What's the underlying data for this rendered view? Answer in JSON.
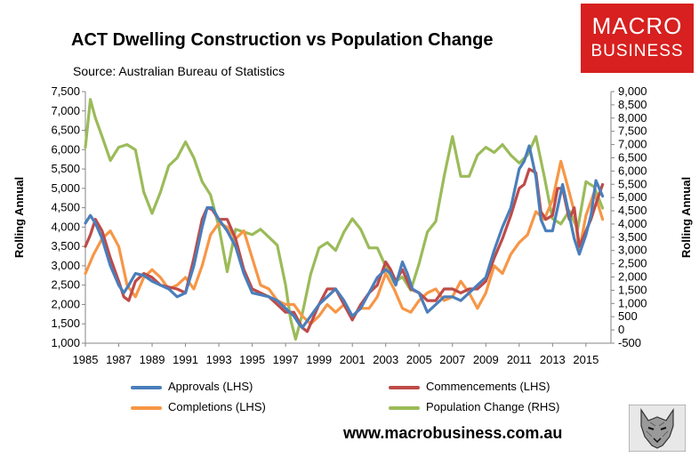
{
  "title": "ACT Dwelling Construction vs Population Change",
  "subtitle": "Source: Australian Bureau of Statistics",
  "logo": {
    "line1": "MACRO",
    "line2": "BUSINESS",
    "color": "#d7201f"
  },
  "website": "www.macrobusiness.com.au",
  "wolf_icon": "wolf-icon",
  "chart_data": {
    "type": "line",
    "title": "ACT Dwelling Construction vs Population Change",
    "ylabel_left": "Rolling Annual",
    "ylabel_right": "Rolling Annual",
    "ylim_left": [
      1000,
      7500
    ],
    "ylim_right": [
      -500,
      9000
    ],
    "xlim": [
      1985,
      2016.5
    ],
    "left_ticks": [
      "1,000",
      "1,500",
      "2,000",
      "2,500",
      "3,000",
      "3,500",
      "4,000",
      "4,500",
      "5,000",
      "5,500",
      "6,000",
      "6,500",
      "7,000",
      "7,500"
    ],
    "right_ticks": [
      "-500",
      "0",
      "500",
      "1,000",
      "1,500",
      "2,000",
      "2,500",
      "3,000",
      "3,500",
      "4,000",
      "4,500",
      "5,000",
      "5,500",
      "6,000",
      "6,500",
      "7,000",
      "7,500",
      "8,000",
      "8,500",
      "9,000"
    ],
    "x_ticks": [
      "1985",
      "1987",
      "1989",
      "1991",
      "1993",
      "1995",
      "1997",
      "1999",
      "2001",
      "2003",
      "2005",
      "2007",
      "2009",
      "2011",
      "2013",
      "2015"
    ],
    "series": [
      {
        "name": "Approvals (LHS)",
        "axis": "left",
        "color": "#4a7ebb",
        "points": [
          [
            1985,
            4100
          ],
          [
            1985.3,
            4300
          ],
          [
            1985.6,
            4100
          ],
          [
            1986,
            3700
          ],
          [
            1986.5,
            3000
          ],
          [
            1987,
            2500
          ],
          [
            1987.3,
            2300
          ],
          [
            1987.6,
            2500
          ],
          [
            1988,
            2800
          ],
          [
            1988.5,
            2750
          ],
          [
            1989,
            2600
          ],
          [
            1989.5,
            2500
          ],
          [
            1990,
            2400
          ],
          [
            1990.5,
            2200
          ],
          [
            1991,
            2300
          ],
          [
            1991.5,
            3000
          ],
          [
            1992,
            4000
          ],
          [
            1992.3,
            4500
          ],
          [
            1992.6,
            4500
          ],
          [
            1993,
            4200
          ],
          [
            1993.5,
            3900
          ],
          [
            1994,
            3500
          ],
          [
            1994.5,
            2800
          ],
          [
            1995,
            2300
          ],
          [
            1995.5,
            2250
          ],
          [
            1996,
            2200
          ],
          [
            1996.5,
            2100
          ],
          [
            1997,
            1900
          ],
          [
            1997.5,
            1700
          ],
          [
            1997.8,
            1500
          ],
          [
            1998,
            1400
          ],
          [
            1998.5,
            1700
          ],
          [
            1999,
            2000
          ],
          [
            1999.5,
            2200
          ],
          [
            2000,
            2400
          ],
          [
            2000.5,
            2100
          ],
          [
            2001,
            1700
          ],
          [
            2001.5,
            1900
          ],
          [
            2002,
            2300
          ],
          [
            2002.5,
            2700
          ],
          [
            2003,
            2900
          ],
          [
            2003.3,
            2800
          ],
          [
            2003.6,
            2500
          ],
          [
            2004,
            3100
          ],
          [
            2004.3,
            2800
          ],
          [
            2004.6,
            2400
          ],
          [
            2005,
            2300
          ],
          [
            2005.5,
            1800
          ],
          [
            2006,
            2000
          ],
          [
            2006.5,
            2200
          ],
          [
            2007,
            2200
          ],
          [
            2007.5,
            2100
          ],
          [
            2008,
            2300
          ],
          [
            2008.5,
            2500
          ],
          [
            2009,
            2700
          ],
          [
            2009.5,
            3400
          ],
          [
            2010,
            4000
          ],
          [
            2010.5,
            4500
          ],
          [
            2011,
            5500
          ],
          [
            2011.3,
            5700
          ],
          [
            2011.6,
            6100
          ],
          [
            2012,
            5300
          ],
          [
            2012.3,
            4200
          ],
          [
            2012.6,
            3900
          ],
          [
            2013,
            3900
          ],
          [
            2013.3,
            4500
          ],
          [
            2013.6,
            5100
          ],
          [
            2014,
            4300
          ],
          [
            2014.3,
            3700
          ],
          [
            2014.6,
            3300
          ],
          [
            2015,
            3800
          ],
          [
            2015.3,
            4300
          ],
          [
            2015.6,
            5200
          ],
          [
            2016,
            4800
          ]
        ]
      },
      {
        "name": "Commencements (LHS)",
        "axis": "left",
        "color": "#be4b48",
        "points": [
          [
            1985,
            3500
          ],
          [
            1985.3,
            3800
          ],
          [
            1985.6,
            4200
          ],
          [
            1986,
            3900
          ],
          [
            1986.5,
            3200
          ],
          [
            1987,
            2600
          ],
          [
            1987.3,
            2200
          ],
          [
            1987.6,
            2100
          ],
          [
            1988,
            2600
          ],
          [
            1988.5,
            2800
          ],
          [
            1989,
            2700
          ],
          [
            1989.5,
            2500
          ],
          [
            1990,
            2450
          ],
          [
            1990.5,
            2400
          ],
          [
            1991,
            2300
          ],
          [
            1991.5,
            3200
          ],
          [
            1992,
            4200
          ],
          [
            1992.3,
            4500
          ],
          [
            1992.6,
            4450
          ],
          [
            1993,
            4200
          ],
          [
            1993.5,
            4200
          ],
          [
            1994,
            3700
          ],
          [
            1994.5,
            2900
          ],
          [
            1995,
            2400
          ],
          [
            1995.5,
            2300
          ],
          [
            1996,
            2200
          ],
          [
            1996.5,
            2000
          ],
          [
            1997,
            1800
          ],
          [
            1997.5,
            1800
          ],
          [
            1998,
            1400
          ],
          [
            1998.3,
            1300
          ],
          [
            1998.6,
            1600
          ],
          [
            1999,
            2000
          ],
          [
            1999.5,
            2400
          ],
          [
            2000,
            2400
          ],
          [
            2000.5,
            2000
          ],
          [
            2001,
            1600
          ],
          [
            2001.5,
            2000
          ],
          [
            2002,
            2300
          ],
          [
            2002.5,
            2500
          ],
          [
            2003,
            3100
          ],
          [
            2003.3,
            2900
          ],
          [
            2003.6,
            2600
          ],
          [
            2004,
            2900
          ],
          [
            2004.5,
            2400
          ],
          [
            2005,
            2300
          ],
          [
            2005.5,
            2100
          ],
          [
            2006,
            2100
          ],
          [
            2006.5,
            2400
          ],
          [
            2007,
            2400
          ],
          [
            2007.5,
            2300
          ],
          [
            2008,
            2400
          ],
          [
            2008.5,
            2400
          ],
          [
            2009,
            2600
          ],
          [
            2009.5,
            3200
          ],
          [
            2010,
            3700
          ],
          [
            2010.5,
            4300
          ],
          [
            2011,
            5000
          ],
          [
            2011.3,
            5100
          ],
          [
            2011.6,
            5500
          ],
          [
            2012,
            5400
          ],
          [
            2012.3,
            4400
          ],
          [
            2012.6,
            4200
          ],
          [
            2013,
            4300
          ],
          [
            2013.3,
            5000
          ],
          [
            2013.6,
            5000
          ],
          [
            2014,
            4200
          ],
          [
            2014.3,
            4500
          ],
          [
            2014.6,
            3500
          ],
          [
            2015,
            3900
          ],
          [
            2015.3,
            4200
          ],
          [
            2015.6,
            4600
          ],
          [
            2016,
            5100
          ]
        ]
      },
      {
        "name": "Completions (LHS)",
        "axis": "left",
        "color": "#f79646",
        "points": [
          [
            1985,
            2800
          ],
          [
            1985.5,
            3300
          ],
          [
            1986,
            3700
          ],
          [
            1986.5,
            3900
          ],
          [
            1987,
            3500
          ],
          [
            1987.5,
            2500
          ],
          [
            1988,
            2200
          ],
          [
            1988.5,
            2700
          ],
          [
            1989,
            2900
          ],
          [
            1989.5,
            2700
          ],
          [
            1990,
            2400
          ],
          [
            1990.5,
            2500
          ],
          [
            1991,
            2700
          ],
          [
            1991.5,
            2400
          ],
          [
            1992,
            3000
          ],
          [
            1992.5,
            3800
          ],
          [
            1993,
            4100
          ],
          [
            1993.5,
            4000
          ],
          [
            1994,
            3700
          ],
          [
            1994.5,
            3900
          ],
          [
            1995,
            3200
          ],
          [
            1995.5,
            2500
          ],
          [
            1996,
            2400
          ],
          [
            1996.5,
            2100
          ],
          [
            1997,
            2000
          ],
          [
            1997.5,
            2000
          ],
          [
            1998,
            1700
          ],
          [
            1998.5,
            1500
          ],
          [
            1999,
            1700
          ],
          [
            1999.5,
            2000
          ],
          [
            2000,
            1800
          ],
          [
            2000.5,
            2000
          ],
          [
            2001,
            1700
          ],
          [
            2001.5,
            1900
          ],
          [
            2002,
            1900
          ],
          [
            2002.5,
            2200
          ],
          [
            2003,
            2800
          ],
          [
            2003.5,
            2400
          ],
          [
            2004,
            1900
          ],
          [
            2004.5,
            1800
          ],
          [
            2005,
            2100
          ],
          [
            2005.5,
            2300
          ],
          [
            2006,
            2400
          ],
          [
            2006.5,
            2100
          ],
          [
            2007,
            2200
          ],
          [
            2007.5,
            2600
          ],
          [
            2008,
            2300
          ],
          [
            2008.5,
            1900
          ],
          [
            2009,
            2300
          ],
          [
            2009.5,
            3000
          ],
          [
            2010,
            2800
          ],
          [
            2010.5,
            3300
          ],
          [
            2011,
            3600
          ],
          [
            2011.5,
            3800
          ],
          [
            2012,
            4400
          ],
          [
            2012.5,
            4200
          ],
          [
            2013,
            4700
          ],
          [
            2013.5,
            5700
          ],
          [
            2014,
            4900
          ],
          [
            2014.3,
            4400
          ],
          [
            2014.6,
            3400
          ],
          [
            2015,
            4300
          ],
          [
            2015.5,
            4900
          ],
          [
            2016,
            4200
          ]
        ]
      },
      {
        "name": "Population Change (RHS)",
        "axis": "right",
        "color": "#9bbb59",
        "points": [
          [
            1985,
            6900
          ],
          [
            1985.3,
            8700
          ],
          [
            1985.6,
            8000
          ],
          [
            1986,
            7300
          ],
          [
            1986.5,
            6400
          ],
          [
            1987,
            6900
          ],
          [
            1987.5,
            7000
          ],
          [
            1988,
            6800
          ],
          [
            1988.5,
            5200
          ],
          [
            1989,
            4400
          ],
          [
            1989.5,
            5200
          ],
          [
            1990,
            6200
          ],
          [
            1990.5,
            6500
          ],
          [
            1991,
            7100
          ],
          [
            1991.5,
            6500
          ],
          [
            1992,
            5600
          ],
          [
            1992.5,
            5100
          ],
          [
            1993,
            3900
          ],
          [
            1993.5,
            2200
          ],
          [
            1994,
            3800
          ],
          [
            1994.5,
            3700
          ],
          [
            1995,
            3600
          ],
          [
            1995.5,
            3800
          ],
          [
            1996,
            3500
          ],
          [
            1996.5,
            3200
          ],
          [
            1997,
            1700
          ],
          [
            1997.3,
            400
          ],
          [
            1997.6,
            -350
          ],
          [
            1998,
            600
          ],
          [
            1998.5,
            2100
          ],
          [
            1999,
            3100
          ],
          [
            1999.5,
            3300
          ],
          [
            2000,
            3000
          ],
          [
            2000.5,
            3700
          ],
          [
            2001,
            4200
          ],
          [
            2001.5,
            3800
          ],
          [
            2002,
            3100
          ],
          [
            2002.5,
            3100
          ],
          [
            2003,
            2400
          ],
          [
            2003.5,
            1800
          ],
          [
            2004,
            2000
          ],
          [
            2004.5,
            1500
          ],
          [
            2005,
            2500
          ],
          [
            2005.5,
            3700
          ],
          [
            2006,
            4100
          ],
          [
            2006.5,
            5800
          ],
          [
            2007,
            7300
          ],
          [
            2007.5,
            5800
          ],
          [
            2008,
            5800
          ],
          [
            2008.5,
            6600
          ],
          [
            2009,
            6900
          ],
          [
            2009.5,
            6700
          ],
          [
            2010,
            7000
          ],
          [
            2010.5,
            6600
          ],
          [
            2011,
            6300
          ],
          [
            2011.5,
            6600
          ],
          [
            2012,
            7300
          ],
          [
            2012.5,
            5800
          ],
          [
            2013,
            4200
          ],
          [
            2013.5,
            4000
          ],
          [
            2014,
            4500
          ],
          [
            2014.5,
            3800
          ],
          [
            2015,
            5600
          ],
          [
            2015.5,
            5400
          ],
          [
            2016,
            4600
          ]
        ]
      }
    ],
    "legend": [
      {
        "label": "Approvals (LHS)",
        "color": "#4a7ebb"
      },
      {
        "label": "Commencements (LHS)",
        "color": "#be4b48"
      },
      {
        "label": "Completions (LHS)",
        "color": "#f79646"
      },
      {
        "label": "Population Change (RHS)",
        "color": "#9bbb59"
      }
    ]
  }
}
